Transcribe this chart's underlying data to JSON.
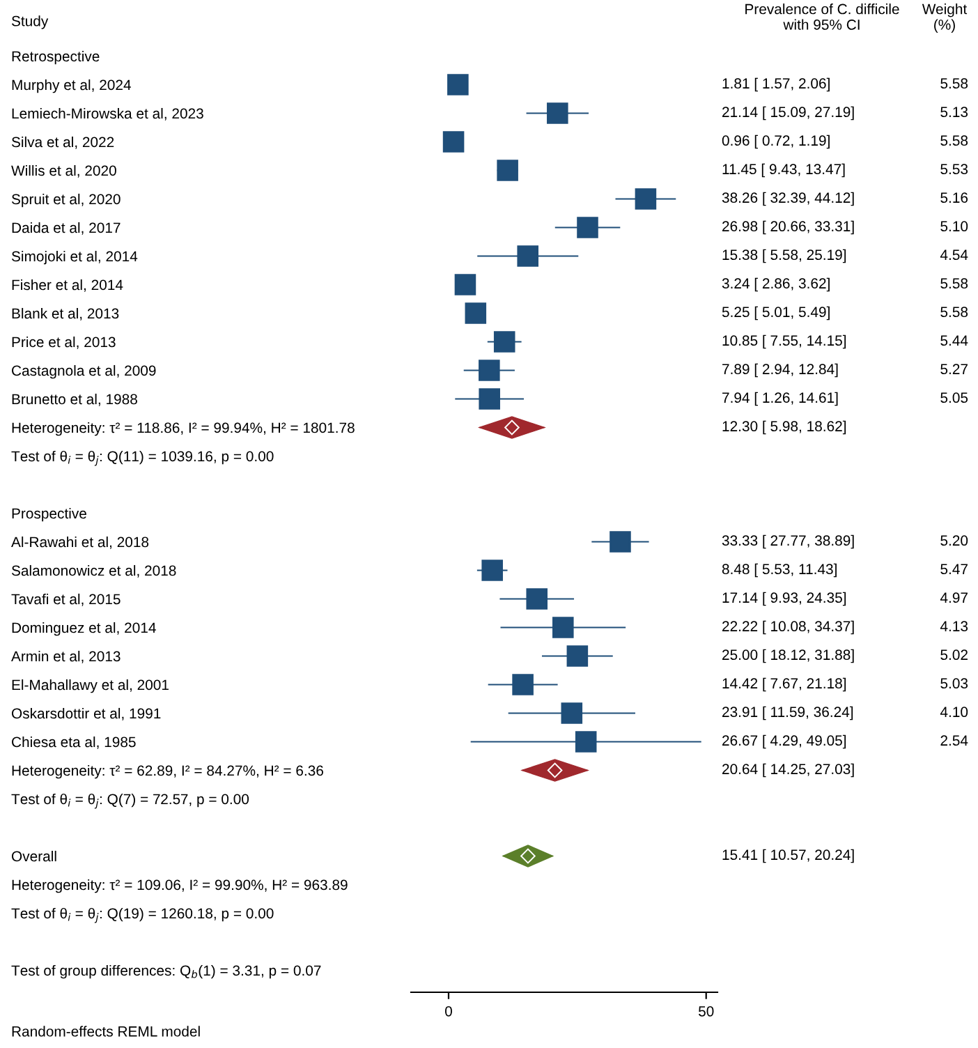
{
  "chart_data": {
    "type": "scatter",
    "orientation": "horizontal",
    "ylabel": "Study",
    "categories": [
      "Retrospective",
      "Murphy et al, 2024",
      "Lemiech-Mirowska et al, 2023",
      "Silva et al, 2022",
      "Willis et al, 2020",
      "Spruit et al, 2020",
      "Daida et al, 2017",
      "Simojoki et al, 2014",
      "Fisher et al, 2014",
      "Blank et al, 2013",
      "Price et al, 2013",
      "Castagnola et al, 2009",
      "Brunetto et al, 1988",
      "Heterogeneity: τ² = 118.86, I² = 99.94%, H² = 1801.78",
      "Test of θ$_{i}$ = θ$_{j}$: Q(11) = 1039.16, p = 0.00",
      null,
      "Prospective",
      "Al-Rawahi et al, 2018",
      "Salamonowicz et al, 2018",
      "Tavafi et al, 2015",
      "Dominguez et al, 2014",
      "Armin et al, 2013",
      "El-Mahallawy et al, 2001",
      "Oskarsdottir et al, 1991",
      "Chiesa eta al, 1985",
      "Heterogeneity: τ² = 62.89, I² = 84.27%, H² = 6.36",
      "Test of θ$_{i}$ = θ$_{j}$: Q(7) = 72.57, p = 0.00",
      null,
      "Overall",
      "Heterogeneity: τ² = 109.06, I² = 99.90%, H² = 963.89",
      "Test of θ$_{i}$ = θ$_{j}$: Q(19) = 1260.18, p = 0.00",
      null,
      "Test of group differences: Q$_{b}$(1) = 3.31, p = 0.07"
    ],
    "series": [
      {
        "marker": "square",
        "color": "#1f4e79",
        "values": [
          null,
          1.81,
          21.14,
          0.96,
          11.45,
          38.26,
          26.98,
          15.38,
          3.24,
          5.25,
          10.85,
          7.89,
          7.94,
          null,
          null,
          null,
          null,
          33.33,
          8.48,
          17.14,
          22.22,
          25.0,
          14.42,
          23.91,
          26.67,
          null,
          null,
          null,
          null,
          null,
          null,
          null,
          null
        ],
        "errors": [
          null,
          [
            1.57,
            2.06
          ],
          [
            15.09,
            27.19
          ],
          [
            0.72,
            1.19
          ],
          [
            9.43,
            13.47
          ],
          [
            32.39,
            44.12
          ],
          [
            20.66,
            33.31
          ],
          [
            5.58,
            25.19
          ],
          [
            2.86,
            3.62
          ],
          [
            5.01,
            5.49
          ],
          [
            7.55,
            14.15
          ],
          [
            2.94,
            12.84
          ],
          [
            1.26,
            14.61
          ],
          null,
          null,
          null,
          null,
          [
            27.77,
            38.89
          ],
          [
            5.53,
            11.43
          ],
          [
            9.93,
            24.35
          ],
          [
            10.08,
            34.37
          ],
          [
            18.12,
            31.88
          ],
          [
            7.67,
            21.18
          ],
          [
            11.59,
            36.24
          ],
          [
            4.29,
            49.05
          ],
          null,
          null,
          null,
          null,
          null,
          null,
          null,
          null
        ],
        "name": null
      },
      {
        "marker": "diamond",
        "colors": [
          null,
          null,
          null,
          null,
          null,
          null,
          null,
          null,
          null,
          null,
          null,
          null,
          null,
          "#a0282d",
          null,
          null,
          null,
          null,
          null,
          null,
          null,
          null,
          null,
          null,
          null,
          "#a0282d",
          null,
          null,
          "#5b7f2a",
          null,
          null,
          null,
          null
        ],
        "values": [
          null,
          null,
          null,
          null,
          null,
          null,
          null,
          null,
          null,
          null,
          null,
          null,
          null,
          12.3,
          null,
          null,
          null,
          null,
          null,
          null,
          null,
          null,
          null,
          null,
          null,
          20.64,
          null,
          null,
          15.41,
          null,
          null,
          null,
          null
        ],
        "errors": [
          null,
          null,
          null,
          null,
          null,
          null,
          null,
          null,
          null,
          null,
          null,
          null,
          null,
          [
            5.98,
            18.62
          ],
          null,
          null,
          null,
          null,
          null,
          null,
          null,
          null,
          null,
          null,
          null,
          [
            14.25,
            27.03
          ],
          null,
          null,
          [
            10.57,
            20.24
          ],
          null,
          null,
          null,
          null
        ]
      }
    ],
    "xlim": [
      -7.3,
      52.2
    ],
    "xticks": [
      0,
      50
    ],
    "grid": false,
    "legend": false,
    "annotations": [
      "Prevalence of C. difficile\nwith 95% CI",
      "Weight\n(%)",
      "Random-effects REML model",
      "1.81 [ 1.57, 2.06]",
      "21.14 [ 15.09, 27.19]",
      "0.96 [ 0.72, 1.19]",
      "11.45 [ 9.43, 13.47]",
      "38.26 [ 32.39, 44.12]",
      "26.98 [ 20.66, 33.31]",
      "15.38 [ 5.58, 25.19]",
      "3.24 [ 2.86, 3.62]",
      "5.25 [ 5.01, 5.49]",
      "10.85 [ 7.55, 14.15]",
      "7.89 [ 2.94, 12.84]",
      "7.94 [ 1.26, 14.61]",
      "12.30 [ 5.98, 18.62]",
      "33.33 [ 27.77, 38.89]",
      "8.48 [ 5.53, 11.43]",
      "17.14 [ 9.93, 24.35]",
      "22.22 [ 10.08, 34.37]",
      "25.00 [ 18.12, 31.88]",
      "14.42 [ 7.67, 21.18]",
      "23.91 [ 11.59, 36.24]",
      "26.67 [ 4.29, 49.05]",
      "20.64 [ 14.25, 27.03]",
      "15.41 [ 10.57, 20.24]",
      "5.58",
      "5.13",
      "5.58",
      "5.53",
      "5.16",
      "5.10",
      "4.54",
      "5.58",
      "5.58",
      "5.44",
      "5.27",
      "5.05",
      "5.20",
      "5.47",
      "4.97",
      "4.13",
      "5.02",
      "5.03",
      "4.10",
      "2.54"
    ]
  }
}
